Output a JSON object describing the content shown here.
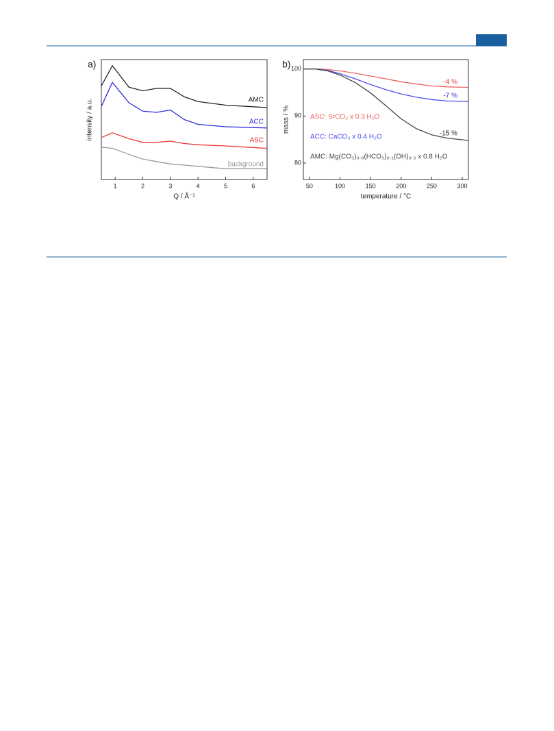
{
  "chart_data": [
    {
      "type": "line",
      "panel": "a)",
      "xlabel": "Q / Å⁻¹",
      "ylabel": "intensity / a.u.",
      "x": [
        0.5,
        0.9,
        1.5,
        2,
        2.5,
        3,
        3.5,
        4,
        5,
        6.5
      ],
      "xlim": [
        0.5,
        6.5
      ],
      "xticks": [
        1,
        2,
        3,
        4,
        5,
        6
      ],
      "ylim": [
        0,
        10
      ],
      "series": [
        {
          "name": "AMC",
          "color": "#222222",
          "values": [
            7.8,
            9.5,
            7.7,
            7.4,
            7.6,
            7.6,
            6.9,
            6.5,
            6.2,
            6.0
          ]
        },
        {
          "name": "ACC",
          "color": "#2a2ae0",
          "values": [
            6.1,
            8.1,
            6.4,
            5.7,
            5.6,
            5.8,
            5.0,
            4.6,
            4.4,
            4.3
          ]
        },
        {
          "name": "ASC",
          "color": "#ee3333",
          "values": [
            3.5,
            3.9,
            3.4,
            3.1,
            3.1,
            3.2,
            3.0,
            2.9,
            2.8,
            2.6
          ]
        },
        {
          "name": "background",
          "color": "#999999",
          "values": [
            2.7,
            2.6,
            2.1,
            1.7,
            1.5,
            1.3,
            1.2,
            1.1,
            0.9,
            0.9
          ]
        }
      ]
    },
    {
      "type": "line",
      "panel": "b)",
      "xlabel": "temperature / °C",
      "ylabel": "mass / %",
      "x": [
        40,
        60,
        80,
        100,
        125,
        150,
        175,
        200,
        225,
        250,
        275,
        310
      ],
      "xlim": [
        40,
        310
      ],
      "xticks": [
        50,
        100,
        150,
        200,
        250,
        300
      ],
      "ylim": [
        76.5,
        102
      ],
      "yticks": [
        80,
        90,
        100
      ],
      "series": [
        {
          "name": "ASC:  SrCO₃ x 0.3 H₂O",
          "color": "#f06060",
          "values": [
            100,
            100,
            99.9,
            99.6,
            99.1,
            98.5,
            97.9,
            97.3,
            96.8,
            96.4,
            96.2,
            96.1
          ]
        },
        {
          "name": "ACC:  CaCO₃ x 0.4 H₂O",
          "color": "#4b4bf0",
          "values": [
            100,
            100,
            99.7,
            99.0,
            97.9,
            96.7,
            95.6,
            94.7,
            94.0,
            93.5,
            93.2,
            93.1
          ]
        },
        {
          "name": "AMC:  Mg(CO₃)₀.₈(HCO₃)₀.₁(OH)₀.₃ x 0.8 H₂O",
          "color": "#444444",
          "values": [
            100,
            100,
            99.6,
            98.7,
            97.1,
            94.9,
            92.2,
            89.4,
            87.3,
            86.0,
            85.3,
            84.8
          ]
        }
      ],
      "annotations": [
        {
          "text": "-4 %",
          "color": "#e03030"
        },
        {
          "text": "-7 %",
          "color": "#3030e0"
        },
        {
          "text": "-15 %",
          "color": "#222222"
        }
      ]
    }
  ]
}
